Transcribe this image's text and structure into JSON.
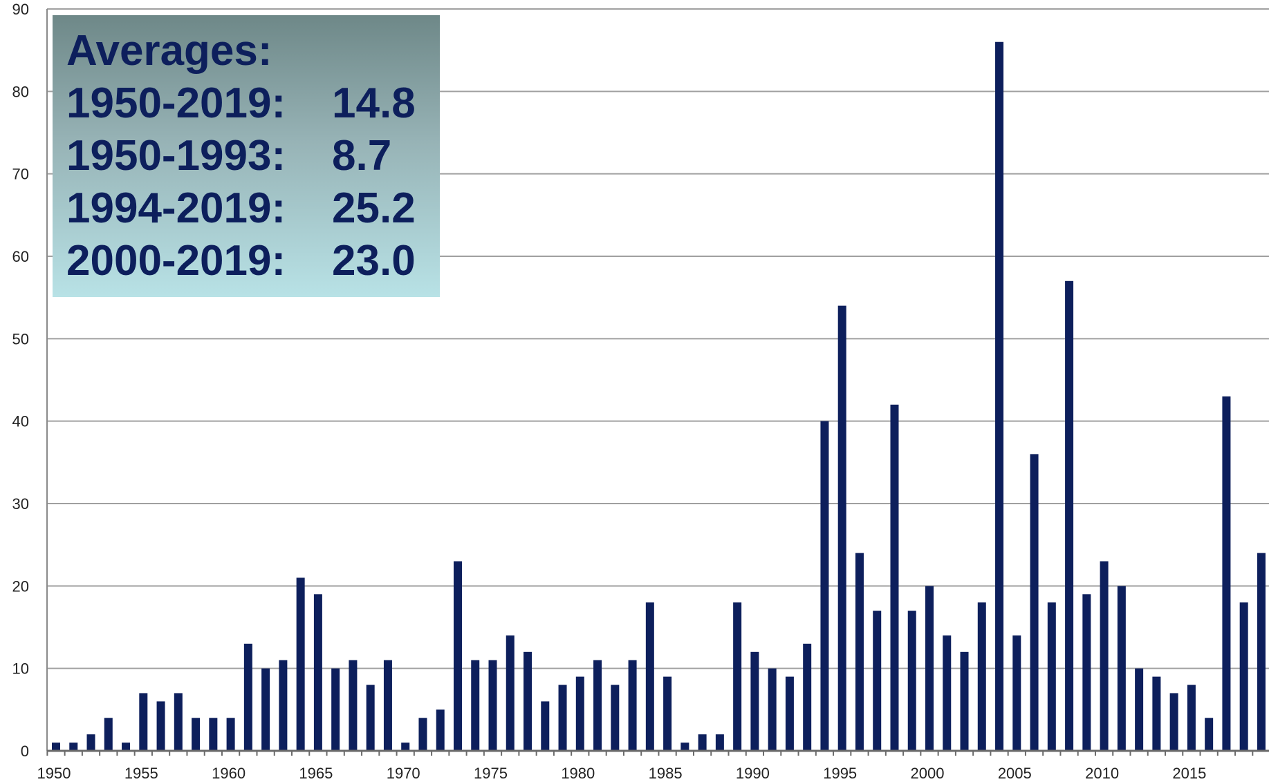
{
  "averages_box": {
    "title": "Averages:",
    "rows": [
      {
        "period": "1950-2019:",
        "value": "14.8"
      },
      {
        "period": "1950-1993:",
        "value": "8.7"
      },
      {
        "period": "1994-2019:",
        "value": "25.2"
      },
      {
        "period": "2000-2019:",
        "value": "23.0"
      }
    ]
  },
  "chart_data": {
    "type": "bar",
    "title": "",
    "xlabel": "",
    "ylabel": "",
    "ylim": [
      0,
      90
    ],
    "yticks": [
      0,
      10,
      20,
      30,
      40,
      50,
      60,
      70,
      80,
      90
    ],
    "xticks": [
      "1950",
      "1955",
      "1960",
      "1965",
      "1970",
      "1975",
      "1980",
      "1985",
      "1990",
      "1995",
      "2000",
      "2005",
      "2010",
      "2015"
    ],
    "grid": true,
    "bar_color": "#0d1f5c",
    "grid_color": "#a0a0a0",
    "categories": [
      "1950",
      "1951",
      "1952",
      "1953",
      "1954",
      "1955",
      "1956",
      "1957",
      "1958",
      "1959",
      "1960",
      "1961",
      "1962",
      "1963",
      "1964",
      "1965",
      "1966",
      "1967",
      "1968",
      "1969",
      "1970",
      "1971",
      "1972",
      "1973",
      "1974",
      "1975",
      "1976",
      "1977",
      "1978",
      "1979",
      "1980",
      "1981",
      "1982",
      "1983",
      "1984",
      "1985",
      "1986",
      "1987",
      "1988",
      "1989",
      "1990",
      "1991",
      "1992",
      "1993",
      "1994",
      "1995",
      "1996",
      "1997",
      "1998",
      "1999",
      "2000",
      "2001",
      "2002",
      "2003",
      "2004",
      "2005",
      "2006",
      "2007",
      "2008",
      "2009",
      "2010",
      "2011",
      "2012",
      "2013",
      "2014",
      "2015",
      "2016",
      "2017",
      "2018",
      "2019"
    ],
    "values": [
      1,
      1,
      2,
      4,
      1,
      7,
      6,
      7,
      4,
      4,
      4,
      13,
      10,
      11,
      21,
      19,
      10,
      11,
      8,
      11,
      1,
      4,
      5,
      23,
      11,
      11,
      14,
      12,
      6,
      8,
      9,
      11,
      8,
      11,
      18,
      9,
      1,
      2,
      2,
      18,
      12,
      10,
      9,
      13,
      40,
      54,
      24,
      17,
      42,
      17,
      20,
      14,
      12,
      18,
      86,
      14,
      36,
      18,
      57,
      19,
      23,
      20,
      10,
      9,
      7,
      8,
      4,
      43,
      18,
      24
    ]
  }
}
